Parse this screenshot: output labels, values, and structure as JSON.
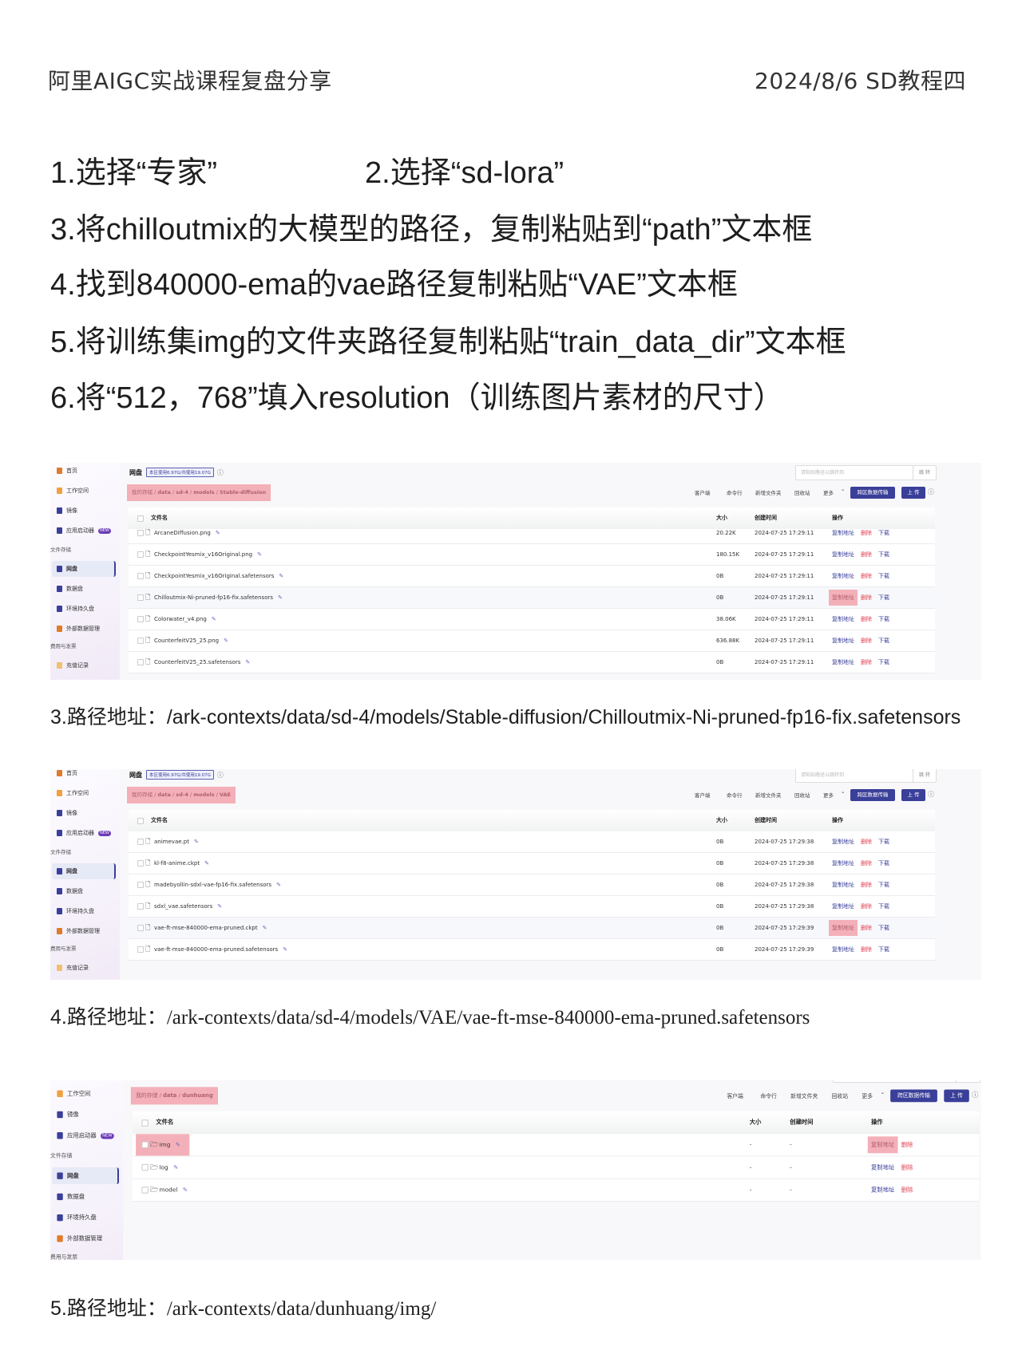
{
  "header": {
    "left": "阿里AIGC实战课程复盘分享",
    "right": "2024/8/6 SD教程四"
  },
  "instructions": [
    "1.选择“专家”",
    "2.选择“sd-lora”",
    "3.将chilloutmix的大模型的路径，复制粘贴到“path”文本框",
    "4.找到840000-ema的vae路径复制粘贴“VAE”文本框",
    "5.将训练集img的文件夹路径复制粘贴“train_data_dir”文本框",
    "6.将“512，768”填入resolution（训练图片素材的尺寸）"
  ],
  "captions": [
    {
      "label": "3.路径地址：",
      "path": "/ark-contexts/data/sd-4/models/Stable-diffusion/Chilloutmix-Ni-pruned-fp16-fix.safetensors"
    },
    {
      "label": "4.路径地址：",
      "path": "/ark-contexts/data/sd-4/models/VAE/vae-ft-mse-840000-ema-pruned.safetensors"
    },
    {
      "label": "5.路径地址：",
      "path": "/ark-contexts/data/dunhuang/img/"
    }
  ],
  "app": {
    "sidebar": [
      {
        "label": "首页",
        "icon": "home-icon",
        "color": "#e07b2c"
      },
      {
        "label": "工作空间",
        "icon": "workspace-icon",
        "color": "#f0a040"
      },
      {
        "label": "镜像",
        "icon": "download-icon",
        "color": "#3a3f99"
      },
      {
        "label": "应用启动器",
        "icon": "app-launcher-icon",
        "color": "#3a3f99",
        "badge": "NEW"
      },
      {
        "section": "文件存储"
      },
      {
        "label": "网盘",
        "icon": "cloud-disk-icon",
        "color": "#3a3f99",
        "active": true
      },
      {
        "label": "数据盘",
        "icon": "folder-icon",
        "color": "#3a3f99"
      },
      {
        "label": "环境持久盘",
        "icon": "lock-icon",
        "color": "#3a3f99"
      },
      {
        "label": "外部数据管理",
        "icon": "external-data-icon",
        "color": "#e07b2c"
      },
      {
        "section": "费用与发票"
      },
      {
        "label": "充值记录",
        "icon": "recharge-icon",
        "color": "#f0c070"
      }
    ],
    "title": "网盘",
    "usage_badge": "本区使用6.97G/共使用19.07G",
    "search_placeholder": "请粘贴路径以跳转到",
    "search_button": "跳 转",
    "toolbar": [
      "客户端",
      "命令行",
      "新增文件夹",
      "回收站",
      "更多"
    ],
    "transfer_button": "跨区数据传输",
    "upload_button": "上 传",
    "columns": {
      "name": "文件名",
      "size": "大小",
      "time": "创建时间",
      "actions": "操作"
    },
    "actions": {
      "copy": "复制地址",
      "delete": "删除",
      "download": "下载"
    }
  },
  "panels": [
    {
      "breadcrumb": [
        "我的存储",
        "data",
        "sd-4",
        "models",
        "Stable-diffusion"
      ],
      "rows": [
        {
          "name": "ArcaneDiffusion.png",
          "size": "20.22K",
          "time": "2024-07-25 17:29:11",
          "type": "file"
        },
        {
          "name": "CheckpointYesmix_v16Original.png",
          "size": "180.15K",
          "time": "2024-07-25 17:29:11",
          "type": "file"
        },
        {
          "name": "CheckpointYesmix_v16Original.safetensors",
          "size": "0B",
          "time": "2024-07-25 17:29:11",
          "type": "file"
        },
        {
          "name": "Chilloutmix-Ni-pruned-fp16-fix.safetensors",
          "size": "0B",
          "time": "2024-07-25 17:29:11",
          "type": "file",
          "highlight_copy": true
        },
        {
          "name": "Colorwater_v4.png",
          "size": "38.06K",
          "time": "2024-07-25 17:29:11",
          "type": "file"
        },
        {
          "name": "CounterfeitV25_25.png",
          "size": "636.88K",
          "time": "2024-07-25 17:29:11",
          "type": "file"
        },
        {
          "name": "CounterfeitV25_25.safetensors",
          "size": "0B",
          "time": "2024-07-25 17:29:11",
          "type": "file"
        }
      ]
    },
    {
      "breadcrumb": [
        "我的存储",
        "data",
        "sd-4",
        "models",
        "VAE"
      ],
      "rows": [
        {
          "name": "animevae.pt",
          "size": "0B",
          "time": "2024-07-25 17:29:38",
          "type": "file"
        },
        {
          "name": "kl-f8-anime.ckpt",
          "size": "0B",
          "time": "2024-07-25 17:29:38",
          "type": "file"
        },
        {
          "name": "madebyollin-sdxl-vae-fp16-fix.safetensors",
          "size": "0B",
          "time": "2024-07-25 17:29:38",
          "type": "file"
        },
        {
          "name": "sdxl_vae.safetensors",
          "size": "0B",
          "time": "2024-07-25 17:29:38",
          "type": "file"
        },
        {
          "name": "vae-ft-mse-840000-ema-pruned.ckpt",
          "size": "0B",
          "time": "2024-07-25 17:29:39",
          "type": "file",
          "highlight_copy": true
        },
        {
          "name": "vae-ft-mse-840000-ema-pruned.safetensors",
          "size": "0B",
          "time": "2024-07-25 17:29:39",
          "type": "file"
        }
      ]
    },
    {
      "breadcrumb": [
        "我的存储",
        "data",
        "dunhuang"
      ],
      "rows": [
        {
          "name": "img",
          "size": "-",
          "time": "-",
          "type": "folder",
          "highlight_copy": true,
          "highlight_name": true
        },
        {
          "name": "log",
          "size": "-",
          "time": "-",
          "type": "folder"
        },
        {
          "name": "model",
          "size": "-",
          "time": "-",
          "type": "folder"
        }
      ]
    }
  ],
  "colors": {
    "accent": "#3a3f99",
    "danger": "#e0404f",
    "highlight": "#f4b0b8"
  }
}
